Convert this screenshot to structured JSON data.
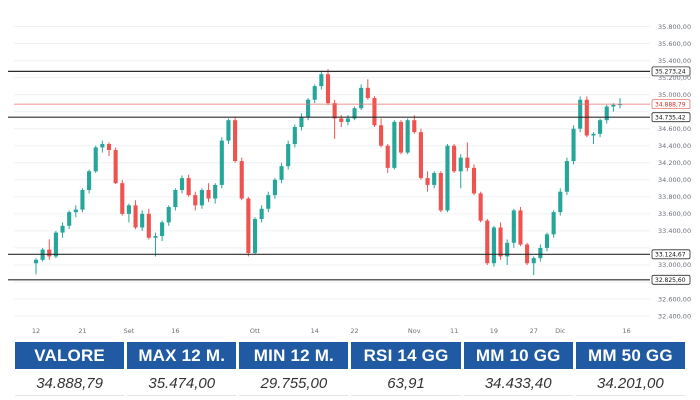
{
  "chart_data": {
    "type": "candlestick",
    "y_ticks": [
      "32.400,00",
      "32.600,00",
      "32.825,60",
      "33.000,00",
      "33.124,67",
      "33.400,00",
      "33.600,00",
      "33.800,00",
      "34.000,00",
      "34.200,00",
      "34.400,00",
      "34.600,00",
      "34.735,42",
      "34.888,79",
      "35.000,00",
      "35.200,00",
      "35.273,24",
      "35.400,00",
      "35.600,00",
      "35.800,00"
    ],
    "grid_y_values": [
      32400,
      32600,
      32800,
      33000,
      33200,
      33400,
      33600,
      33800,
      34000,
      34200,
      34400,
      34600,
      34800,
      35000,
      35200,
      35400,
      35600,
      35800
    ],
    "y_tick_labels": [
      {
        "value": 32400,
        "label": "32.400,00"
      },
      {
        "value": 32600,
        "label": "32.600,00"
      },
      {
        "value": 33000,
        "label": "33.000,00"
      },
      {
        "value": 33400,
        "label": "33.400,00"
      },
      {
        "value": 33600,
        "label": "33.600,00"
      },
      {
        "value": 33800,
        "label": "33.800,00"
      },
      {
        "value": 34000,
        "label": "34.000,00"
      },
      {
        "value": 34200,
        "label": "34.200,00"
      },
      {
        "value": 34400,
        "label": "34.400,00"
      },
      {
        "value": 34600,
        "label": "34.600,00"
      },
      {
        "value": 35000,
        "label": "35.000,00"
      },
      {
        "value": 35200,
        "label": "35.200,00"
      },
      {
        "value": 35400,
        "label": "35.400,00"
      },
      {
        "value": 35600,
        "label": "35.600,00"
      },
      {
        "value": 35800,
        "label": "35.800,00"
      }
    ],
    "ylim": [
      32330,
      35900
    ],
    "x_ticks": [
      {
        "index": 0,
        "label": "12"
      },
      {
        "index": 7,
        "label": "21"
      },
      {
        "index": 14,
        "label": "Set"
      },
      {
        "index": 21,
        "label": "16"
      },
      {
        "index": 33,
        "label": "Ott"
      },
      {
        "index": 42,
        "label": "14"
      },
      {
        "index": 48,
        "label": "22"
      },
      {
        "index": 57,
        "label": "Nov"
      },
      {
        "index": 63,
        "label": "11"
      },
      {
        "index": 69,
        "label": "19"
      },
      {
        "index": 75,
        "label": "27"
      },
      {
        "index": 79,
        "label": "Dic"
      },
      {
        "index": 89,
        "label": "16"
      }
    ],
    "horizontal_levels": [
      {
        "value": 35273.24,
        "label": "35.273,24"
      },
      {
        "value": 34735.42,
        "label": "34.735,42"
      },
      {
        "value": 33124.67,
        "label": "33.124,67"
      },
      {
        "value": 32825.6,
        "label": "32.825,60"
      }
    ],
    "last_price": {
      "value": 34888.79,
      "label": "34.888,79"
    },
    "colors": {
      "up": "#26a69a",
      "down": "#ef5350"
    },
    "candles": [
      [
        33020,
        33080,
        32890,
        33060
      ],
      [
        33060,
        33200,
        33040,
        33180
      ],
      [
        33180,
        33300,
        33060,
        33100
      ],
      [
        33100,
        33400,
        33080,
        33380
      ],
      [
        33380,
        33500,
        33320,
        33460
      ],
      [
        33460,
        33640,
        33420,
        33620
      ],
      [
        33620,
        33700,
        33560,
        33650
      ],
      [
        33650,
        33900,
        33620,
        33880
      ],
      [
        33880,
        34120,
        33840,
        34100
      ],
      [
        34100,
        34400,
        34080,
        34380
      ],
      [
        34380,
        34460,
        34320,
        34420
      ],
      [
        34420,
        34440,
        34280,
        34350
      ],
      [
        34350,
        34380,
        33950,
        33960
      ],
      [
        33960,
        34000,
        33580,
        33600
      ],
      [
        33600,
        33720,
        33500,
        33700
      ],
      [
        33700,
        33760,
        33420,
        33440
      ],
      [
        33440,
        33640,
        33400,
        33600
      ],
      [
        33600,
        33660,
        33300,
        33320
      ],
      [
        33320,
        33380,
        33100,
        33340
      ],
      [
        33340,
        33520,
        33280,
        33500
      ],
      [
        33500,
        33700,
        33460,
        33680
      ],
      [
        33680,
        33900,
        33640,
        33880
      ],
      [
        33880,
        34050,
        33840,
        34020
      ],
      [
        34020,
        34060,
        33800,
        33820
      ],
      [
        33820,
        33860,
        33640,
        33700
      ],
      [
        33700,
        33900,
        33660,
        33880
      ],
      [
        33880,
        33960,
        33740,
        33780
      ],
      [
        33780,
        33960,
        33720,
        33940
      ],
      [
        33940,
        34500,
        33900,
        34460
      ],
      [
        34460,
        34720,
        34420,
        34700
      ],
      [
        34700,
        34740,
        34200,
        34220
      ],
      [
        34220,
        34260,
        33760,
        33780
      ],
      [
        33780,
        33800,
        33100,
        33140
      ],
      [
        33140,
        33560,
        33120,
        33540
      ],
      [
        33540,
        33700,
        33500,
        33660
      ],
      [
        33660,
        33860,
        33620,
        33820
      ],
      [
        33820,
        34020,
        33780,
        34000
      ],
      [
        34000,
        34200,
        33960,
        34160
      ],
      [
        34160,
        34460,
        34120,
        34420
      ],
      [
        34420,
        34650,
        34380,
        34620
      ],
      [
        34620,
        34780,
        34580,
        34740
      ],
      [
        34740,
        34960,
        34700,
        34940
      ],
      [
        34940,
        35120,
        34900,
        35100
      ],
      [
        35100,
        35280,
        35060,
        35240
      ],
      [
        35240,
        35300,
        34880,
        34900
      ],
      [
        34900,
        34940,
        34480,
        34720
      ],
      [
        34720,
        34760,
        34620,
        34680
      ],
      [
        34680,
        34760,
        34640,
        34720
      ],
      [
        34720,
        34860,
        34700,
        34840
      ],
      [
        34840,
        35120,
        34820,
        35080
      ],
      [
        35080,
        35180,
        34940,
        34960
      ],
      [
        34960,
        34980,
        34620,
        34640
      ],
      [
        34640,
        34720,
        34380,
        34400
      ],
      [
        34400,
        34420,
        34080,
        34140
      ],
      [
        34140,
        34700,
        34120,
        34680
      ],
      [
        34680,
        34700,
        34300,
        34320
      ],
      [
        34320,
        34720,
        34300,
        34700
      ],
      [
        34700,
        34760,
        34540,
        34560
      ],
      [
        34560,
        34600,
        34000,
        34020
      ],
      [
        34020,
        34100,
        33860,
        33940
      ],
      [
        33940,
        34100,
        33900,
        34080
      ],
      [
        34080,
        34100,
        33620,
        33640
      ],
      [
        33640,
        34420,
        33620,
        34400
      ],
      [
        34400,
        34420,
        34080,
        34100
      ],
      [
        34100,
        34300,
        33900,
        34260
      ],
      [
        34260,
        34440,
        34100,
        34140
      ],
      [
        34140,
        34180,
        33820,
        33840
      ],
      [
        33840,
        33860,
        33500,
        33520
      ],
      [
        33520,
        33540,
        33000,
        33020
      ],
      [
        33020,
        33460,
        32980,
        33440
      ],
      [
        33440,
        33500,
        33060,
        33100
      ],
      [
        33100,
        33300,
        33000,
        33260
      ],
      [
        33260,
        33660,
        33200,
        33640
      ],
      [
        33640,
        33680,
        33220,
        33240
      ],
      [
        33240,
        33260,
        33000,
        33020
      ],
      [
        33020,
        33100,
        32880,
        33080
      ],
      [
        33080,
        33240,
        33040,
        33200
      ],
      [
        33200,
        33380,
        33160,
        33360
      ],
      [
        33360,
        33640,
        33320,
        33620
      ],
      [
        33620,
        33900,
        33580,
        33860
      ],
      [
        33860,
        34260,
        33820,
        34220
      ],
      [
        34220,
        34640,
        34180,
        34600
      ],
      [
        34600,
        34980,
        34560,
        34940
      ],
      [
        34940,
        34980,
        34500,
        34520
      ],
      [
        34520,
        34560,
        34420,
        34540
      ],
      [
        34540,
        34720,
        34500,
        34700
      ],
      [
        34700,
        34880,
        34660,
        34860
      ],
      [
        34860,
        34900,
        34800,
        34880
      ],
      [
        34880,
        34960,
        34840,
        34889
      ]
    ]
  },
  "stats": {
    "headers": [
      "VALORE",
      "MAX 12 M.",
      "MIN 12 M.",
      "RSI 14 GG",
      "MM 10 GG",
      "MM 50 GG"
    ],
    "values": [
      "34.888,79",
      "35.474,00",
      "29.755,00",
      "63,91",
      "34.433,40",
      "34.201,00"
    ]
  }
}
